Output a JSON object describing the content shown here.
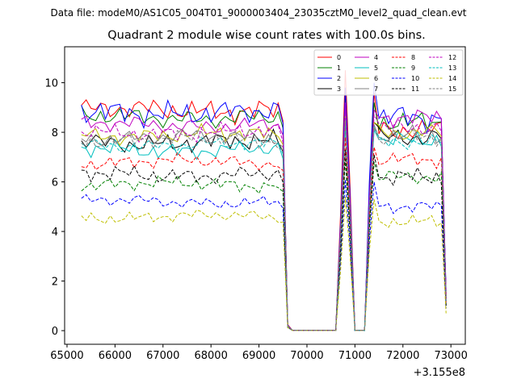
{
  "figure": {
    "suptitle": "Data file: modeM0/AS1C05_004T01_9000003404_23035cztM0_level2_quad_clean.evt"
  },
  "chart_data": {
    "type": "line",
    "title": "Quadrant 2 module wise count rates with 100.0s bins.",
    "xlabel": "",
    "ylabel": "",
    "x_offset_label": "+3.155e8",
    "xlim": [
      64950,
      73300
    ],
    "ylim": [
      -0.55,
      11.45
    ],
    "xticks": [
      65000,
      66000,
      67000,
      68000,
      69000,
      70000,
      71000,
      72000,
      73000
    ],
    "xtick_labels": [
      "65000",
      "66000",
      "67000",
      "68000",
      "69000",
      "70000",
      "71000",
      "72000",
      "73000"
    ],
    "yticks": [
      0,
      2,
      4,
      6,
      8,
      10
    ],
    "ytick_labels": [
      "0",
      "2",
      "4",
      "6",
      "8",
      "10"
    ],
    "grid": false,
    "legend_position": "top-right",
    "legend_columns": 4,
    "x_start": 65300,
    "x_step": 100,
    "n_points": 77,
    "series": [
      {
        "name": "0",
        "color": "#ff0000",
        "dash": "solid",
        "mean": 8.9,
        "amp": 0.4,
        "phase": 0.3,
        "dip": 0.08,
        "peak1": 10.5,
        "peak2": 9.6,
        "end": 8.1,
        "last": 1.5
      },
      {
        "name": "1",
        "color": "#008000",
        "dash": "solid",
        "mean": 8.6,
        "amp": 0.35,
        "phase": 1.1,
        "dip": 0.07,
        "peak1": 9.6,
        "peak2": 9.2,
        "end": 8.4,
        "last": 1.4
      },
      {
        "name": "2",
        "color": "#0000ff",
        "dash": "solid",
        "mean": 8.8,
        "amp": 0.45,
        "phase": 2.0,
        "dip": 0.07,
        "peak1": 9.8,
        "peak2": 10.0,
        "end": 8.6,
        "last": 1.6
      },
      {
        "name": "3",
        "color": "#000000",
        "dash": "solid",
        "mean": 7.6,
        "amp": 0.35,
        "phase": 2.7,
        "dip": 0.06,
        "peak1": 8.8,
        "peak2": 8.4,
        "end": 7.8,
        "last": 1.3
      },
      {
        "name": "4",
        "color": "#bf00bf",
        "dash": "solid",
        "mean": 8.3,
        "amp": 0.3,
        "phase": 0.8,
        "dip": 0.07,
        "peak1": 9.2,
        "peak2": 8.9,
        "end": 8.6,
        "last": 1.4
      },
      {
        "name": "5",
        "color": "#00bfbf",
        "dash": "solid",
        "mean": 7.3,
        "amp": 0.3,
        "phase": 1.7,
        "dip": 0.06,
        "peak1": 8.3,
        "peak2": 8.1,
        "end": 7.7,
        "last": 1.2
      },
      {
        "name": "6",
        "color": "#bfbf00",
        "dash": "solid",
        "mean": 7.9,
        "amp": 0.3,
        "phase": 3.3,
        "dip": 0.06,
        "peak1": 8.7,
        "peak2": 8.4,
        "end": 8.0,
        "last": 1.3
      },
      {
        "name": "7",
        "color": "#808080",
        "dash": "solid",
        "mean": 7.8,
        "amp": 0.3,
        "phase": 4.1,
        "dip": 0.06,
        "peak1": 8.6,
        "peak2": 8.3,
        "end": 7.9,
        "last": 1.3
      },
      {
        "name": "8",
        "color": "#ff0000",
        "dash": "dashed",
        "mean": 6.8,
        "amp": 0.25,
        "phase": 4.7,
        "dip": 0.05,
        "peak1": 7.8,
        "peak2": 7.4,
        "end": 6.9,
        "last": 1.1
      },
      {
        "name": "9",
        "color": "#008000",
        "dash": "dashed",
        "mean": 5.9,
        "amp": 0.25,
        "phase": 5.2,
        "dip": 0.05,
        "peak1": 6.9,
        "peak2": 6.8,
        "end": 6.2,
        "last": 1.0
      },
      {
        "name": "10",
        "color": "#0000ff",
        "dash": "dashed",
        "mean": 5.2,
        "amp": 0.22,
        "phase": 0.5,
        "dip": 0.04,
        "peak1": 6.1,
        "peak2": 6.0,
        "end": 5.0,
        "last": 0.9
      },
      {
        "name": "11",
        "color": "#000000",
        "dash": "dashed",
        "mean": 6.3,
        "amp": 0.3,
        "phase": 1.4,
        "dip": 0.05,
        "peak1": 7.3,
        "peak2": 7.1,
        "end": 6.2,
        "last": 1.0
      },
      {
        "name": "12",
        "color": "#bf00bf",
        "dash": "dashed",
        "mean": 8.0,
        "amp": 0.3,
        "phase": 2.3,
        "dip": 0.06,
        "peak1": 8.9,
        "peak2": 8.7,
        "end": 8.2,
        "last": 1.3
      },
      {
        "name": "13",
        "color": "#00bfbf",
        "dash": "dashed",
        "mean": 7.5,
        "amp": 0.25,
        "phase": 3.0,
        "dip": 0.06,
        "peak1": 8.4,
        "peak2": 8.2,
        "end": 7.6,
        "last": 1.2
      },
      {
        "name": "14",
        "color": "#bfbf00",
        "dash": "dashed",
        "mean": 4.6,
        "amp": 0.22,
        "phase": 3.8,
        "dip": 0.04,
        "peak1": 5.4,
        "peak2": 5.3,
        "end": 4.4,
        "last": 0.7
      },
      {
        "name": "15",
        "color": "#808080",
        "dash": "dashed",
        "mean": 7.7,
        "amp": 0.28,
        "phase": 4.4,
        "dip": 0.06,
        "peak1": 8.5,
        "peak2": 8.2,
        "end": 7.8,
        "last": 1.2
      }
    ]
  }
}
